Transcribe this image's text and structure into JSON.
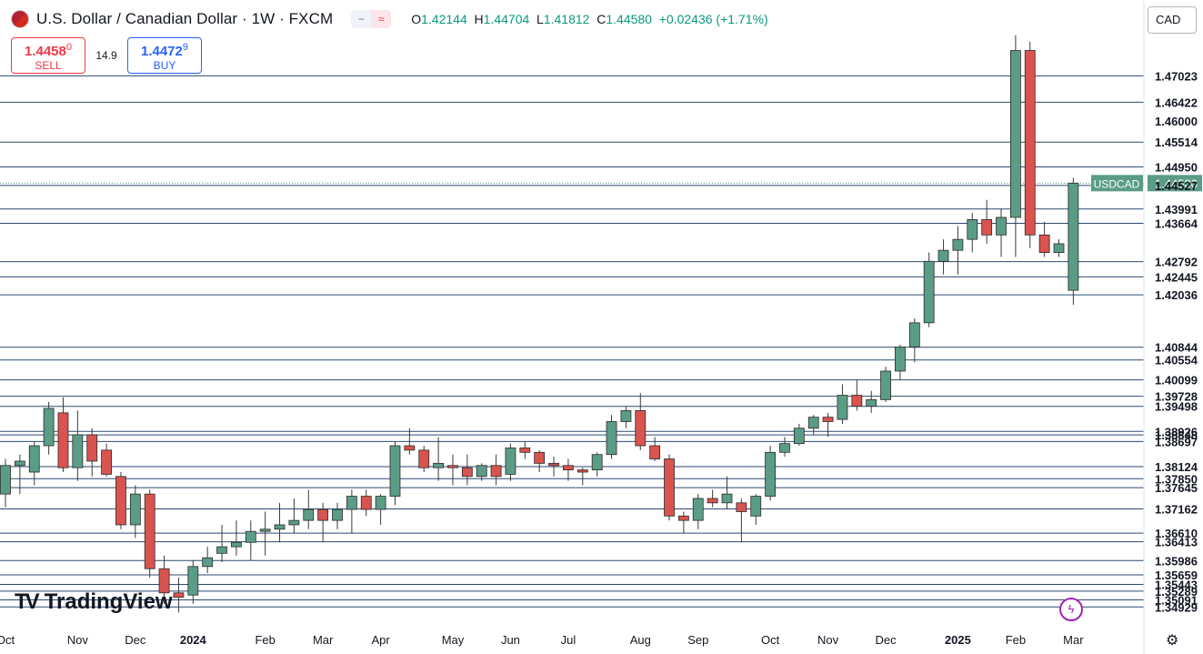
{
  "header": {
    "title": "U.S. Dollar / Canadian Dollar · 1W · FXCM",
    "open_label": "O",
    "open": "1.42144",
    "high_label": "H",
    "high": "1.44704",
    "low_label": "L",
    "low": "1.41812",
    "close_label": "C",
    "close": "1.44580",
    "change": "+0.02436 (+1.71%)"
  },
  "trade": {
    "sell_price_main": "1.4458",
    "sell_price_small": "0",
    "sell_label": "SELL",
    "spread": "14.9",
    "buy_price_main": "1.4472",
    "buy_price_small": "9",
    "buy_label": "BUY"
  },
  "currency": "CAD",
  "logo": "TradingView",
  "colors": {
    "up": "#5b9c86",
    "down": "#d9534f",
    "level": "#2c4a70",
    "tag": "#5b9c86"
  },
  "icons": [
    "us-canada-flag-icon",
    "minus-icon",
    "wave-icon",
    "lightning-icon",
    "gear-icon"
  ],
  "chart_data": {
    "type": "candlestick",
    "symbol_tag": "USDCAD",
    "last_price": 1.4458,
    "ylim": [
      1.345,
      1.4875
    ],
    "x_ticks": [
      "Oct",
      "Nov",
      "Dec",
      "2024",
      "Feb",
      "Mar",
      "Apr",
      "May",
      "Jun",
      "Jul",
      "Aug",
      "Sep",
      "Oct",
      "Nov",
      "Dec",
      "2025",
      "Feb",
      "Mar"
    ],
    "x_tick_weeks": [
      0,
      5,
      9,
      13,
      18,
      22,
      26,
      31,
      35,
      39,
      44,
      48,
      53,
      57,
      61,
      66,
      70,
      74
    ],
    "y_axis_labels": [
      "1.47023",
      "1.46422",
      "1.46000",
      "1.45514",
      "1.44950",
      "1.44580",
      "1.44527",
      "1.43991",
      "1.43664",
      "1.42792",
      "1.42445",
      "1.42036",
      "1.40844",
      "1.40554",
      "1.40099",
      "1.39728",
      "1.39498",
      "1.38926",
      "1.38848",
      "1.38697",
      "1.38124",
      "1.37850",
      "1.37645",
      "1.37162",
      "1.36610",
      "1.36413",
      "1.35986",
      "1.35659",
      "1.35443",
      "1.35289",
      "1.35091",
      "1.34929"
    ],
    "levels": [
      1.47023,
      1.46422,
      1.45514,
      1.4495,
      1.44527,
      1.43991,
      1.43664,
      1.42792,
      1.42445,
      1.42036,
      1.40844,
      1.40554,
      1.40099,
      1.39728,
      1.39498,
      1.38926,
      1.38848,
      1.38697,
      1.38124,
      1.3785,
      1.37645,
      1.37162,
      1.3661,
      1.36413,
      1.35986,
      1.35659,
      1.35443,
      1.35289,
      1.35091,
      1.34929
    ],
    "candles": [
      [
        1.375,
        1.383,
        1.372,
        1.3815
      ],
      [
        1.3815,
        1.384,
        1.375,
        1.3825
      ],
      [
        1.38,
        1.387,
        1.377,
        1.386
      ],
      [
        1.386,
        1.396,
        1.384,
        1.3945
      ],
      [
        1.3935,
        1.397,
        1.38,
        1.381
      ],
      [
        1.381,
        1.394,
        1.378,
        1.3885
      ],
      [
        1.3885,
        1.39,
        1.379,
        1.3825
      ],
      [
        1.385,
        1.3865,
        1.379,
        1.3795
      ],
      [
        1.379,
        1.38,
        1.367,
        1.368
      ],
      [
        1.368,
        1.377,
        1.365,
        1.375
      ],
      [
        1.375,
        1.376,
        1.356,
        1.358
      ],
      [
        1.358,
        1.361,
        1.35,
        1.3525
      ],
      [
        1.3525,
        1.356,
        1.348,
        1.3515
      ],
      [
        1.352,
        1.36,
        1.35,
        1.3585
      ],
      [
        1.3585,
        1.363,
        1.357,
        1.3605
      ],
      [
        1.3615,
        1.368,
        1.3595,
        1.363
      ],
      [
        1.363,
        1.369,
        1.361,
        1.364
      ],
      [
        1.364,
        1.369,
        1.36,
        1.3665
      ],
      [
        1.3665,
        1.371,
        1.361,
        1.367
      ],
      [
        1.367,
        1.373,
        1.364,
        1.368
      ],
      [
        1.368,
        1.374,
        1.366,
        1.369
      ],
      [
        1.369,
        1.376,
        1.367,
        1.3715
      ],
      [
        1.3715,
        1.373,
        1.364,
        1.369
      ],
      [
        1.369,
        1.373,
        1.367,
        1.3715
      ],
      [
        1.3715,
        1.376,
        1.366,
        1.3745
      ],
      [
        1.3745,
        1.376,
        1.37,
        1.3715
      ],
      [
        1.3715,
        1.375,
        1.368,
        1.3745
      ],
      [
        1.3745,
        1.387,
        1.3725,
        1.386
      ],
      [
        1.386,
        1.39,
        1.384,
        1.385
      ],
      [
        1.385,
        1.386,
        1.38,
        1.381
      ],
      [
        1.381,
        1.388,
        1.378,
        1.382
      ],
      [
        1.3815,
        1.384,
        1.377,
        1.381
      ],
      [
        1.381,
        1.384,
        1.377,
        1.379
      ],
      [
        1.379,
        1.382,
        1.378,
        1.3815
      ],
      [
        1.3815,
        1.384,
        1.377,
        1.379
      ],
      [
        1.3795,
        1.3865,
        1.378,
        1.3855
      ],
      [
        1.3855,
        1.387,
        1.383,
        1.3845
      ],
      [
        1.3845,
        1.385,
        1.38,
        1.382
      ],
      [
        1.382,
        1.3835,
        1.379,
        1.3815
      ],
      [
        1.3815,
        1.383,
        1.378,
        1.3805
      ],
      [
        1.3805,
        1.381,
        1.377,
        1.38
      ],
      [
        1.3805,
        1.3845,
        1.379,
        1.384
      ],
      [
        1.384,
        1.393,
        1.383,
        1.3915
      ],
      [
        1.3915,
        1.395,
        1.39,
        1.394
      ],
      [
        1.394,
        1.398,
        1.385,
        1.386
      ],
      [
        1.386,
        1.388,
        1.3825,
        1.383
      ],
      [
        1.383,
        1.384,
        1.369,
        1.37
      ],
      [
        1.37,
        1.371,
        1.366,
        1.369
      ],
      [
        1.369,
        1.375,
        1.367,
        1.374
      ],
      [
        1.374,
        1.376,
        1.372,
        1.373
      ],
      [
        1.373,
        1.379,
        1.3715,
        1.375
      ],
      [
        1.373,
        1.374,
        1.364,
        1.371
      ],
      [
        1.37,
        1.375,
        1.368,
        1.3745
      ],
      [
        1.3745,
        1.386,
        1.3735,
        1.3845
      ],
      [
        1.3845,
        1.388,
        1.3835,
        1.3865
      ],
      [
        1.3865,
        1.391,
        1.386,
        1.39
      ],
      [
        1.39,
        1.393,
        1.3885,
        1.3925
      ],
      [
        1.3925,
        1.3935,
        1.388,
        1.3915
      ],
      [
        1.392,
        1.4,
        1.391,
        1.3975
      ],
      [
        1.3975,
        1.401,
        1.394,
        1.395
      ],
      [
        1.395,
        1.3985,
        1.3935,
        1.3965
      ],
      [
        1.3965,
        1.404,
        1.396,
        1.403
      ],
      [
        1.403,
        1.409,
        1.401,
        1.4085
      ],
      [
        1.4085,
        1.415,
        1.405,
        1.414
      ],
      [
        1.414,
        1.43,
        1.413,
        1.428
      ],
      [
        1.428,
        1.433,
        1.425,
        1.4305
      ],
      [
        1.4305,
        1.436,
        1.425,
        1.433
      ],
      [
        1.433,
        1.439,
        1.43,
        1.4375
      ],
      [
        1.4375,
        1.442,
        1.432,
        1.434
      ],
      [
        1.434,
        1.44,
        1.429,
        1.438
      ],
      [
        1.438,
        1.4795,
        1.429,
        1.476
      ],
      [
        1.476,
        1.478,
        1.431,
        1.434
      ],
      [
        1.434,
        1.437,
        1.429,
        1.43
      ],
      [
        1.43,
        1.433,
        1.429,
        1.432
      ],
      [
        1.4214,
        1.447,
        1.4181,
        1.4458
      ]
    ]
  }
}
